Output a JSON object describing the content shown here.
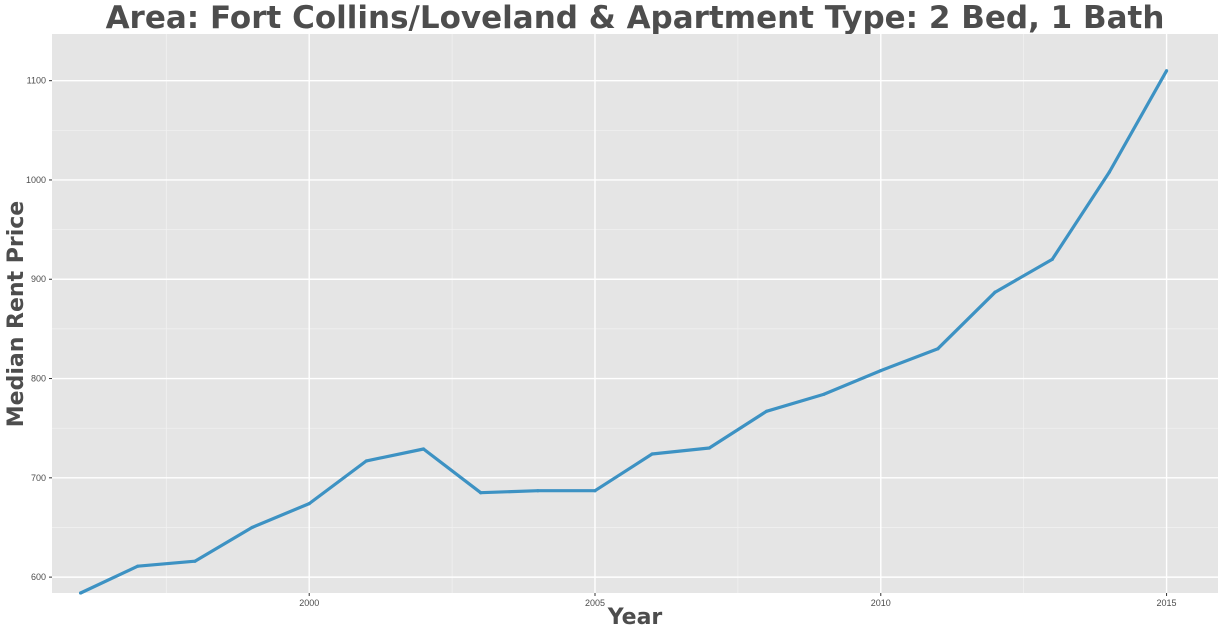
{
  "chart_data": {
    "type": "line",
    "title": "Area: Fort Collins/Loveland & Apartment Type: 2 Bed, 1 Bath",
    "xlabel": "Year",
    "ylabel": "Median Rent Price",
    "xlim": [
      1995.5,
      2015.9
    ],
    "ylim": [
      584,
      1147
    ],
    "x_ticks": [
      2000,
      2005,
      2010,
      2015
    ],
    "x_tick_labels": [
      "2000",
      "2005",
      "2010",
      "2015"
    ],
    "y_ticks": [
      600,
      700,
      800,
      900,
      1000,
      1100
    ],
    "y_tick_labels": [
      "600",
      "700",
      "800",
      "900",
      "1000",
      "1100"
    ],
    "grid": true,
    "series": [
      {
        "x": [
          1996,
          1997,
          1998,
          1999,
          2000,
          2001,
          2002,
          2003,
          2004,
          2005,
          2006,
          2007,
          2008,
          2009,
          2010,
          2011,
          2012,
          2013,
          2014,
          2015
        ],
        "values": [
          584,
          611,
          616,
          650,
          674,
          717,
          729,
          685,
          687,
          687,
          724,
          730,
          767,
          784,
          808,
          830,
          887,
          920,
          1008,
          1110
        ],
        "color": "#3d92c3"
      }
    ],
    "colors": {
      "panel": "#e5e5e5",
      "grid_major": "#ffffff",
      "grid_minor": "#f2f2f2",
      "line": "#3d92c3",
      "text": "#4d4d4d"
    }
  }
}
